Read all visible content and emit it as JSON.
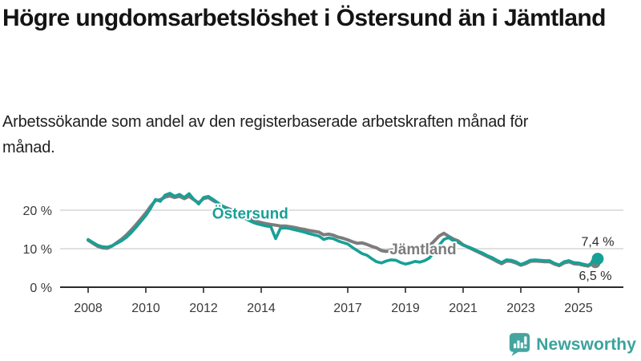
{
  "header": {
    "title": "Högre ungdomsarbetslöshet i Östersund än i Jämtland",
    "subtitle": "Arbetssökande som andel av den registerbaserade arbetskraften månad för månad."
  },
  "colors": {
    "accent_teal": "#17A096",
    "line_gray": "#7C7C7C",
    "brand_teal": "#3BA39C",
    "text": "#141414",
    "grid": "#DCDCDC",
    "axis": "#2B2B2B"
  },
  "footer": {
    "brand": "Newsworthy",
    "logo_icon": "bar-chart-speech-bubble-icon"
  },
  "chart_data": {
    "type": "line",
    "title": "Högre ungdomsarbetslöshet i Östersund än i Jämtland",
    "xlabel": "",
    "ylabel": "",
    "grid": "horizontal",
    "xlim": [
      2007.1,
      2026.3
    ],
    "ylim": [
      0,
      26
    ],
    "x_start": 2008.0,
    "x_step_years": 0.166667,
    "x_ticks": {
      "years": [
        2008,
        2010,
        2012,
        2014,
        2017,
        2019,
        2021,
        2023,
        2025
      ],
      "labels": [
        "2008",
        "2010",
        "2012",
        "2014",
        "2017",
        "2019",
        "2021",
        "2023",
        "2025"
      ]
    },
    "y_ticks": {
      "values": [
        0,
        10,
        20
      ],
      "labels": [
        "0 %",
        "10 %",
        "20 %"
      ]
    },
    "series": [
      {
        "name": "Östersund",
        "color": "#17A096",
        "line_width": 3.6,
        "dot_radius": 7.4,
        "dot_dx": 0,
        "dot_dy": 0,
        "end_label": "7,4 %",
        "end_label_dy": -16,
        "label_pos": {
          "year": 2012.3,
          "value": 19.3
        },
        "values": [
          12.4,
          11.6,
          10.9,
          10.5,
          10.4,
          10.8,
          11.4,
          12.1,
          13.0,
          14.2,
          15.6,
          17.1,
          18.6,
          20.5,
          22.8,
          22.3,
          23.9,
          24.4,
          23.6,
          24.1,
          23.3,
          24.3,
          22.8,
          21.6,
          23.3,
          23.6,
          22.8,
          21.9,
          21.0,
          20.3,
          19.7,
          19.0,
          18.3,
          17.6,
          17.0,
          16.5,
          16.2,
          15.9,
          15.7,
          12.6,
          15.3,
          15.4,
          15.2,
          14.9,
          14.6,
          14.3,
          13.9,
          13.6,
          13.3,
          12.4,
          12.8,
          12.6,
          12.0,
          11.6,
          11.2,
          10.3,
          9.5,
          8.7,
          8.3,
          7.4,
          6.6,
          6.3,
          6.8,
          7.1,
          7.0,
          6.4,
          6.0,
          6.3,
          6.7,
          6.5,
          6.9,
          7.6,
          9.2,
          10.9,
          12.4,
          12.9,
          12.0,
          11.6,
          10.9,
          10.5,
          10.0,
          9.4,
          8.9,
          8.2,
          7.7,
          7.0,
          6.4,
          7.1,
          7.0,
          6.6,
          5.9,
          6.4,
          7.0,
          7.1,
          7.0,
          6.9,
          6.9,
          6.2,
          5.8,
          6.6,
          6.9,
          6.4,
          6.3,
          6.0,
          5.7,
          6.5,
          7.4
        ]
      },
      {
        "name": "Jämtland",
        "color": "#7C7C7C",
        "line_width": 4,
        "dot_radius": 6.4,
        "dot_dx": -3,
        "dot_dy": 1,
        "end_label": "6,5 %",
        "end_label_dy": 22,
        "label_pos": {
          "year": 2018.45,
          "value": 10.0
        },
        "values": [
          12.2,
          11.4,
          10.6,
          10.2,
          10.1,
          10.7,
          11.6,
          12.5,
          13.6,
          14.9,
          16.3,
          17.8,
          19.3,
          21.0,
          22.5,
          22.7,
          23.4,
          23.7,
          23.3,
          23.6,
          23.0,
          23.6,
          22.7,
          21.9,
          23.0,
          23.3,
          22.5,
          21.8,
          21.0,
          20.5,
          20.0,
          19.4,
          18.8,
          18.2,
          17.6,
          17.1,
          16.8,
          16.5,
          16.3,
          16.1,
          15.9,
          15.9,
          15.7,
          15.5,
          15.2,
          15.0,
          14.7,
          14.5,
          14.3,
          13.6,
          13.8,
          13.5,
          13.0,
          12.7,
          12.3,
          11.8,
          11.4,
          11.5,
          11.1,
          10.6,
          10.2,
          9.5,
          9.3,
          9.6,
          9.8,
          10.0,
          10.1,
          10.3,
          10.2,
          10.0,
          10.2,
          10.8,
          12.0,
          13.3,
          14.0,
          13.2,
          12.5,
          12.0,
          11.0,
          10.4,
          9.8,
          9.2,
          8.6,
          8.0,
          7.4,
          6.7,
          6.1,
          6.8,
          6.7,
          6.3,
          5.7,
          6.1,
          6.7,
          6.8,
          6.7,
          6.6,
          6.6,
          6.0,
          5.6,
          6.3,
          6.6,
          6.1,
          6.0,
          5.7,
          5.5,
          6.2,
          6.5
        ]
      }
    ]
  }
}
